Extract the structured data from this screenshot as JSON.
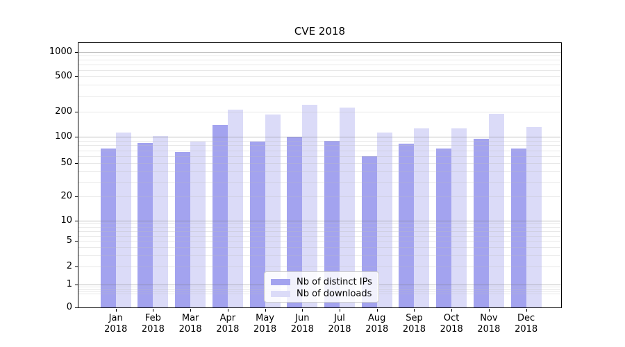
{
  "chart_data": {
    "type": "bar",
    "title": "CVE 2018",
    "categories": [
      "Jan 2018",
      "Feb 2018",
      "Mar 2018",
      "Apr 2018",
      "May 2018",
      "Jun 2018",
      "Jul 2018",
      "Aug 2018",
      "Sep 2018",
      "Oct 2018",
      "Nov 2018",
      "Dec 2018"
    ],
    "series": [
      {
        "name": "Nb of distinct IPs",
        "color": "#a3a3ef",
        "values": [
          73,
          85,
          67,
          140,
          88,
          100,
          90,
          60,
          84,
          74,
          95,
          73
        ]
      },
      {
        "name": "Nb of downloads",
        "color": "#dbdbf8",
        "values": [
          112,
          101,
          88,
          210,
          187,
          242,
          225,
          113,
          125,
          125,
          189,
          131
        ]
      }
    ],
    "xlabel": "",
    "ylabel": "",
    "yscale": "symlog",
    "y_ticks": [
      0,
      1,
      2,
      5,
      10,
      20,
      50,
      100,
      200,
      500,
      1000
    ],
    "ylim": [
      0,
      1300
    ],
    "grid": "on",
    "legend_position": "lower-center-inside"
  },
  "legend": {
    "items": [
      {
        "label": "Nb of distinct IPs",
        "color": "#a3a3ef"
      },
      {
        "label": "Nb of downloads",
        "color": "#dbdbf8"
      }
    ]
  },
  "colors": {
    "major_grid": "rgba(128,128,128,0.5)",
    "minor_grid": "rgba(190,190,190,0.35)",
    "axis": "#000000"
  }
}
